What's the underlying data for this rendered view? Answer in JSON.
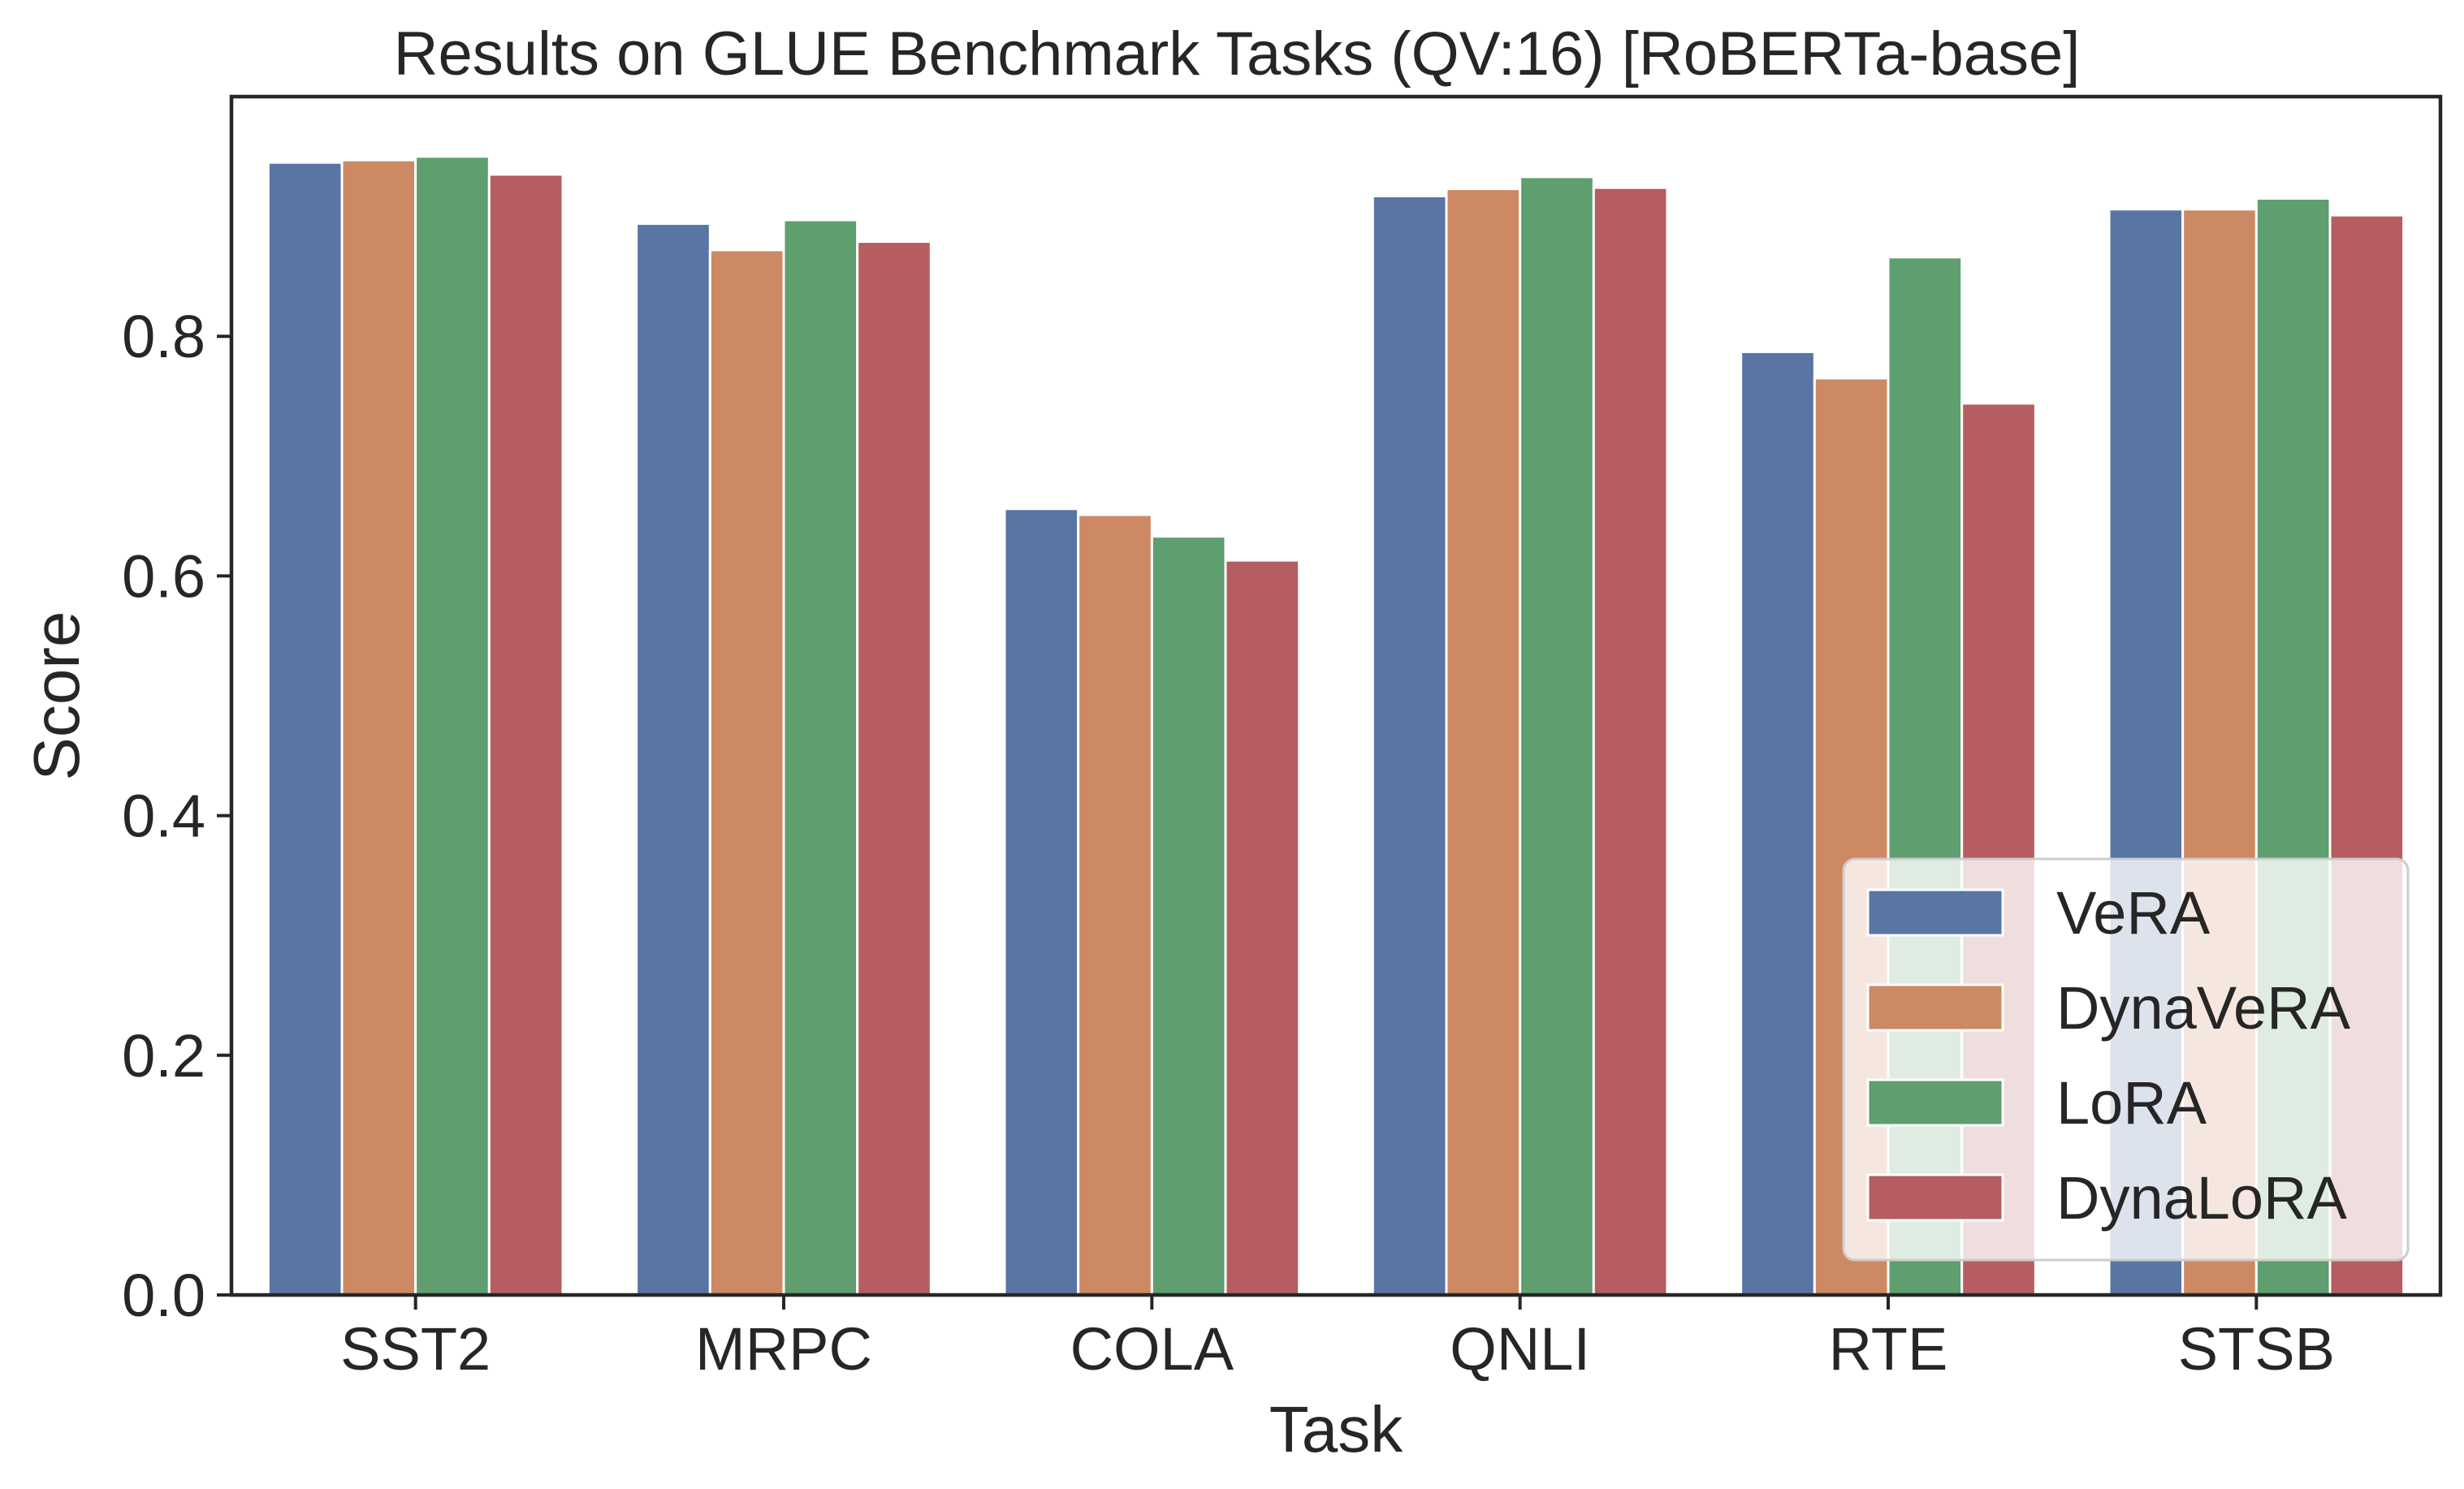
{
  "chart_data": {
    "type": "bar",
    "title": "Results on GLUE Benchmark Tasks (QV:16) [RoBERTa-base]",
    "xlabel": "Task",
    "ylabel": "Score",
    "ylim": [
      0,
      1.0
    ],
    "yticks": [
      0.0,
      0.2,
      0.4,
      0.6,
      0.8
    ],
    "ytick_labels": [
      "0.0",
      "0.2",
      "0.4",
      "0.6",
      "0.8"
    ],
    "categories": [
      "SST2",
      "MRPC",
      "COLA",
      "QNLI",
      "RTE",
      "STSB"
    ],
    "series": [
      {
        "name": "VeRA",
        "color": "#5875a4",
        "values": [
          0.945,
          0.894,
          0.656,
          0.917,
          0.787,
          0.906
        ]
      },
      {
        "name": "DynaVeRA",
        "color": "#cc8963",
        "values": [
          0.947,
          0.872,
          0.651,
          0.923,
          0.765,
          0.906
        ]
      },
      {
        "name": "LoRA",
        "color": "#5f9e6e",
        "values": [
          0.95,
          0.897,
          0.633,
          0.933,
          0.866,
          0.915
        ]
      },
      {
        "name": "DynaLoRA",
        "color": "#b55d60",
        "values": [
          0.935,
          0.879,
          0.613,
          0.924,
          0.744,
          0.901
        ]
      }
    ],
    "grid": false,
    "legend_position": "lower right"
  }
}
